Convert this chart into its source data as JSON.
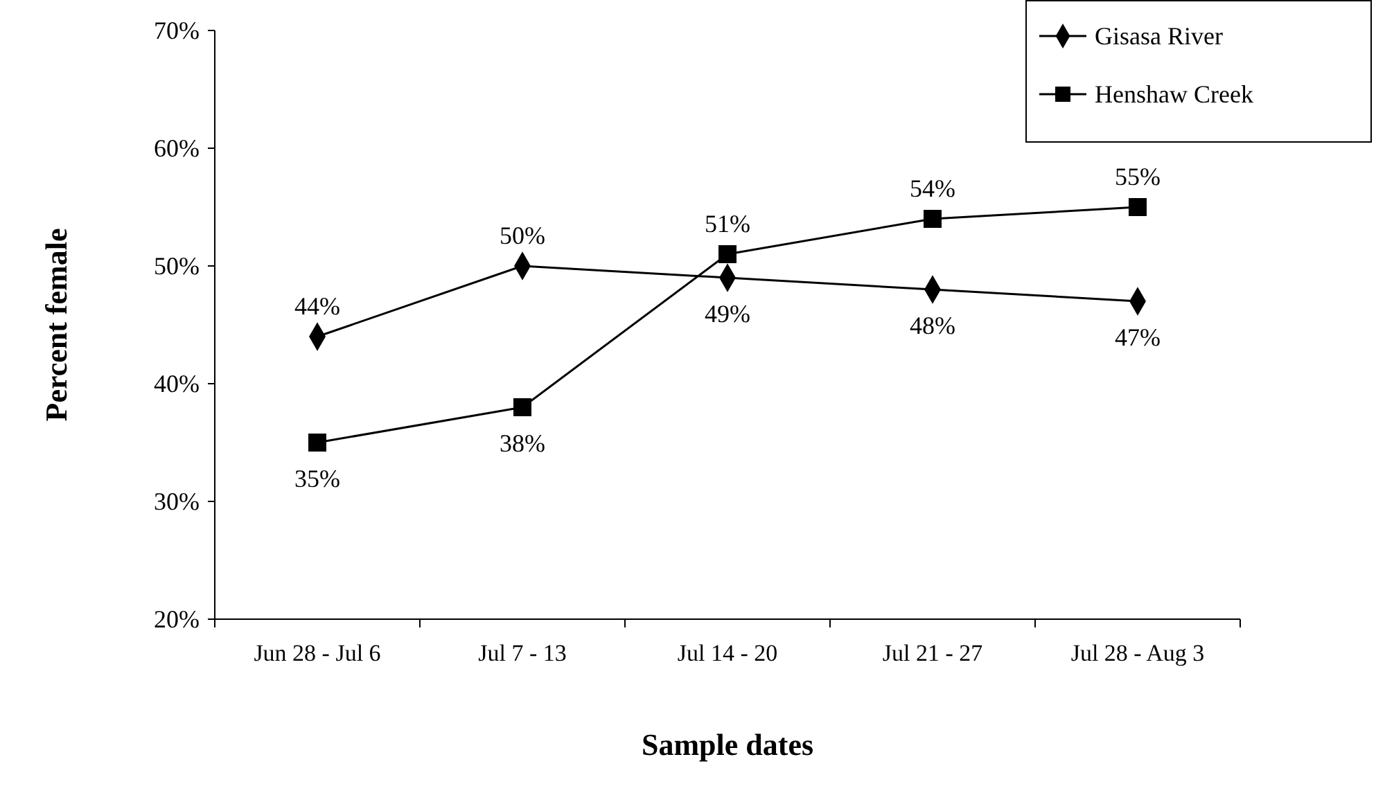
{
  "chart_data": {
    "type": "line",
    "xlabel": "Sample dates",
    "ylabel": "Percent female",
    "categories": [
      "Jun 28 - Jul 6",
      "Jul 7 - 13",
      "Jul 14 - 20",
      "Jul 21 - 27",
      "Jul 28 - Aug 3"
    ],
    "series": [
      {
        "name": "Gisasa River",
        "color": "#000000",
        "marker": "diamond",
        "values": [
          44,
          50,
          49,
          48,
          47
        ],
        "value_labels": [
          "44%",
          "50%",
          "49%",
          "48%",
          "47%"
        ]
      },
      {
        "name": "Henshaw Creek",
        "color": "#000000",
        "marker": "square",
        "values": [
          35,
          38,
          51,
          54,
          55
        ],
        "value_labels": [
          "35%",
          "38%",
          "51%",
          "54%",
          "55%"
        ]
      }
    ],
    "ylim": [
      20,
      70
    ],
    "yticks": [
      {
        "value": 20,
        "label": "20%"
      },
      {
        "value": 30,
        "label": "30%"
      },
      {
        "value": 40,
        "label": "40%"
      },
      {
        "value": 50,
        "label": "50%"
      },
      {
        "value": 60,
        "label": "60%"
      },
      {
        "value": 70,
        "label": "70%"
      }
    ],
    "grid": false,
    "legend": "top right",
    "line_style": "solid"
  }
}
